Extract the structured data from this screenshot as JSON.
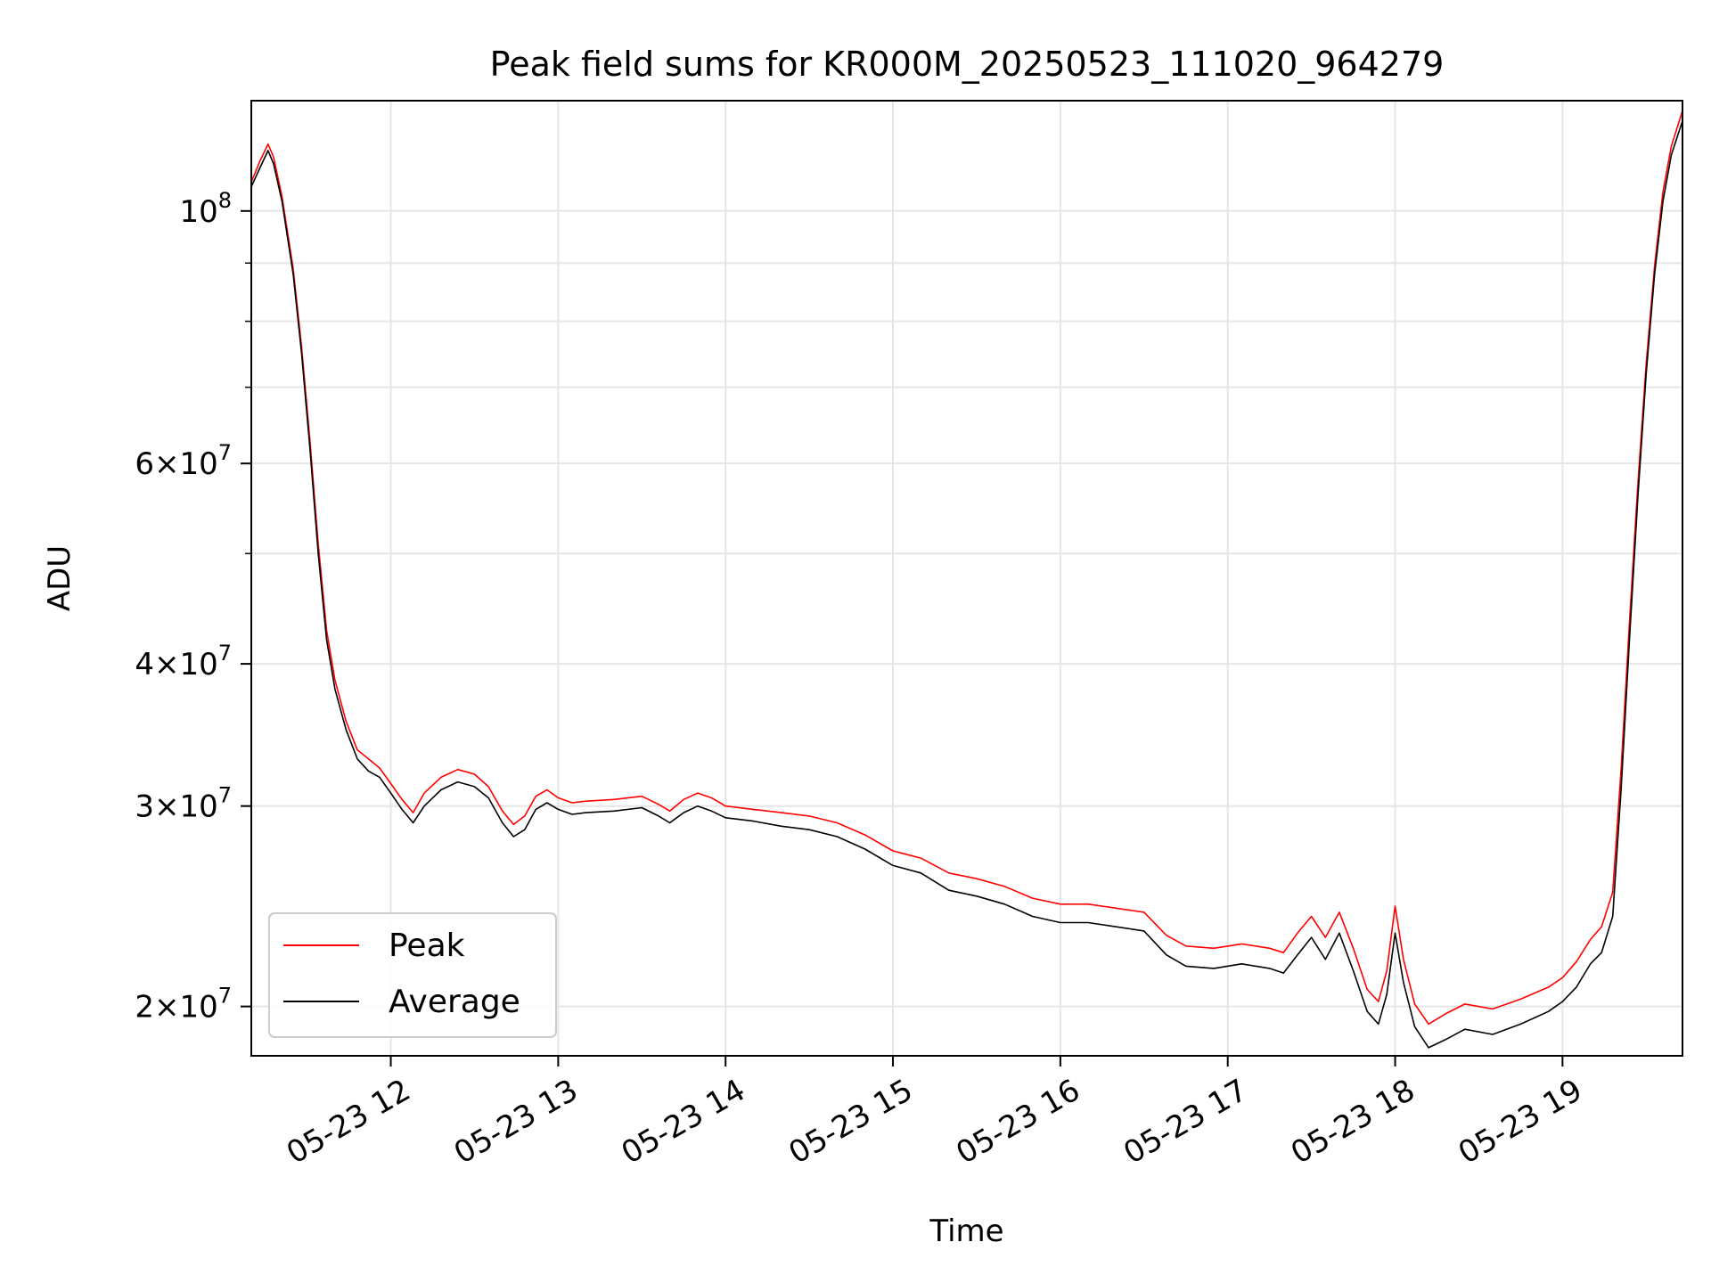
{
  "chart_data": {
    "type": "line",
    "title": "Peak field sums for KR000M_20250523_111020_964279",
    "xlabel": "Time",
    "ylabel": "ADU",
    "x_scale": "time",
    "y_scale": "log",
    "xlim": [
      "2025-05-23 11:10",
      "2025-05-23 19:43"
    ],
    "ylim": [
      18100000,
      125000000
    ],
    "x_ticks": [
      {
        "value": "2025-05-23 12:00",
        "label": "05-23 12"
      },
      {
        "value": "2025-05-23 13:00",
        "label": "05-23 13"
      },
      {
        "value": "2025-05-23 14:00",
        "label": "05-23 14"
      },
      {
        "value": "2025-05-23 15:00",
        "label": "05-23 15"
      },
      {
        "value": "2025-05-23 16:00",
        "label": "05-23 16"
      },
      {
        "value": "2025-05-23 17:00",
        "label": "05-23 17"
      },
      {
        "value": "2025-05-23 18:00",
        "label": "05-23 18"
      },
      {
        "value": "2025-05-23 19:00",
        "label": "05-23 19"
      }
    ],
    "y_ticks": [
      {
        "value": 100000000,
        "base": "10",
        "exp": "8",
        "mult": ""
      },
      {
        "value": 60000000,
        "base": "10",
        "exp": "7",
        "mult": "6"
      },
      {
        "value": 40000000,
        "base": "10",
        "exp": "7",
        "mult": "4"
      },
      {
        "value": 30000000,
        "base": "10",
        "exp": "7",
        "mult": "3"
      },
      {
        "value": 20000000,
        "base": "10",
        "exp": "7",
        "mult": "2"
      }
    ],
    "y_minor_ticks": [
      50000000,
      70000000,
      80000000,
      90000000
    ],
    "grid": true,
    "legend": {
      "placement": "lower-left",
      "entries": [
        "Peak",
        "Average"
      ]
    },
    "series": [
      {
        "name": "Average",
        "color": "#000000",
        "points": [
          [
            "2025-05-23 11:10",
            105000000
          ],
          [
            "2025-05-23 11:13",
            109000000
          ],
          [
            "2025-05-23 11:16",
            113000000
          ],
          [
            "2025-05-23 11:18",
            110000000
          ],
          [
            "2025-05-23 11:21",
            102000000
          ],
          [
            "2025-05-23 11:25",
            88000000
          ],
          [
            "2025-05-23 11:28",
            75000000
          ],
          [
            "2025-05-23 11:31",
            62000000
          ],
          [
            "2025-05-23 11:34",
            50000000
          ],
          [
            "2025-05-23 11:37",
            42000000
          ],
          [
            "2025-05-23 11:40",
            38000000
          ],
          [
            "2025-05-23 11:44",
            35000000
          ],
          [
            "2025-05-23 11:48",
            33000000
          ],
          [
            "2025-05-23 11:52",
            32200000
          ],
          [
            "2025-05-23 11:56",
            31800000
          ],
          [
            "2025-05-23 12:00",
            30800000
          ],
          [
            "2025-05-23 12:04",
            29800000
          ],
          [
            "2025-05-23 12:08",
            29000000
          ],
          [
            "2025-05-23 12:12",
            30000000
          ],
          [
            "2025-05-23 12:18",
            31000000
          ],
          [
            "2025-05-23 12:24",
            31500000
          ],
          [
            "2025-05-23 12:30",
            31200000
          ],
          [
            "2025-05-23 12:35",
            30500000
          ],
          [
            "2025-05-23 12:40",
            29000000
          ],
          [
            "2025-05-23 12:44",
            28200000
          ],
          [
            "2025-05-23 12:48",
            28600000
          ],
          [
            "2025-05-23 12:52",
            29800000
          ],
          [
            "2025-05-23 12:56",
            30200000
          ],
          [
            "2025-05-23 13:00",
            29800000
          ],
          [
            "2025-05-23 13:05",
            29500000
          ],
          [
            "2025-05-23 13:10",
            29600000
          ],
          [
            "2025-05-23 13:20",
            29700000
          ],
          [
            "2025-05-23 13:30",
            29900000
          ],
          [
            "2025-05-23 13:36",
            29400000
          ],
          [
            "2025-05-23 13:40",
            29000000
          ],
          [
            "2025-05-23 13:45",
            29600000
          ],
          [
            "2025-05-23 13:50",
            30000000
          ],
          [
            "2025-05-23 13:55",
            29700000
          ],
          [
            "2025-05-23 14:00",
            29300000
          ],
          [
            "2025-05-23 14:10",
            29100000
          ],
          [
            "2025-05-23 14:20",
            28800000
          ],
          [
            "2025-05-23 14:30",
            28600000
          ],
          [
            "2025-05-23 14:40",
            28200000
          ],
          [
            "2025-05-23 14:50",
            27500000
          ],
          [
            "2025-05-23 15:00",
            26600000
          ],
          [
            "2025-05-23 15:10",
            26200000
          ],
          [
            "2025-05-23 15:20",
            25300000
          ],
          [
            "2025-05-23 15:30",
            25000000
          ],
          [
            "2025-05-23 15:40",
            24600000
          ],
          [
            "2025-05-23 15:50",
            24000000
          ],
          [
            "2025-05-23 16:00",
            23700000
          ],
          [
            "2025-05-23 16:10",
            23700000
          ],
          [
            "2025-05-23 16:20",
            23500000
          ],
          [
            "2025-05-23 16:30",
            23300000
          ],
          [
            "2025-05-23 16:38",
            22200000
          ],
          [
            "2025-05-23 16:45",
            21700000
          ],
          [
            "2025-05-23 16:55",
            21600000
          ],
          [
            "2025-05-23 17:05",
            21800000
          ],
          [
            "2025-05-23 17:15",
            21600000
          ],
          [
            "2025-05-23 17:20",
            21400000
          ],
          [
            "2025-05-23 17:25",
            22200000
          ],
          [
            "2025-05-23 17:30",
            23000000
          ],
          [
            "2025-05-23 17:35",
            22000000
          ],
          [
            "2025-05-23 17:40",
            23200000
          ],
          [
            "2025-05-23 17:45",
            21500000
          ],
          [
            "2025-05-23 17:50",
            19800000
          ],
          [
            "2025-05-23 17:54",
            19300000
          ],
          [
            "2025-05-23 17:57",
            20500000
          ],
          [
            "2025-05-23 18:00",
            23200000
          ],
          [
            "2025-05-23 18:03",
            21000000
          ],
          [
            "2025-05-23 18:07",
            19200000
          ],
          [
            "2025-05-23 18:12",
            18400000
          ],
          [
            "2025-05-23 18:18",
            18700000
          ],
          [
            "2025-05-23 18:25",
            19100000
          ],
          [
            "2025-05-23 18:35",
            18900000
          ],
          [
            "2025-05-23 18:45",
            19300000
          ],
          [
            "2025-05-23 18:55",
            19800000
          ],
          [
            "2025-05-23 19:00",
            20200000
          ],
          [
            "2025-05-23 19:05",
            20800000
          ],
          [
            "2025-05-23 19:10",
            21800000
          ],
          [
            "2025-05-23 19:14",
            22300000
          ],
          [
            "2025-05-23 19:18",
            24000000
          ],
          [
            "2025-05-23 19:21",
            31000000
          ],
          [
            "2025-05-23 19:24",
            42000000
          ],
          [
            "2025-05-23 19:27",
            56000000
          ],
          [
            "2025-05-23 19:30",
            72000000
          ],
          [
            "2025-05-23 19:33",
            88000000
          ],
          [
            "2025-05-23 19:36",
            102000000
          ],
          [
            "2025-05-23 19:39",
            112000000
          ],
          [
            "2025-05-23 19:43",
            120000000
          ]
        ]
      },
      {
        "name": "Peak",
        "color": "#ff0000",
        "points": [
          [
            "2025-05-23 11:10",
            106000000
          ],
          [
            "2025-05-23 11:13",
            110500000
          ],
          [
            "2025-05-23 11:16",
            114500000
          ],
          [
            "2025-05-23 11:18",
            111500000
          ],
          [
            "2025-05-23 11:21",
            103000000
          ],
          [
            "2025-05-23 11:25",
            89000000
          ],
          [
            "2025-05-23 11:28",
            76000000
          ],
          [
            "2025-05-23 11:31",
            63000000
          ],
          [
            "2025-05-23 11:34",
            51000000
          ],
          [
            "2025-05-23 11:37",
            42800000
          ],
          [
            "2025-05-23 11:40",
            38700000
          ],
          [
            "2025-05-23 11:44",
            35600000
          ],
          [
            "2025-05-23 11:48",
            33600000
          ],
          [
            "2025-05-23 11:52",
            33000000
          ],
          [
            "2025-05-23 11:56",
            32400000
          ],
          [
            "2025-05-23 12:00",
            31400000
          ],
          [
            "2025-05-23 12:04",
            30400000
          ],
          [
            "2025-05-23 12:08",
            29600000
          ],
          [
            "2025-05-23 12:12",
            30800000
          ],
          [
            "2025-05-23 12:18",
            31800000
          ],
          [
            "2025-05-23 12:24",
            32300000
          ],
          [
            "2025-05-23 12:30",
            32000000
          ],
          [
            "2025-05-23 12:35",
            31200000
          ],
          [
            "2025-05-23 12:40",
            29700000
          ],
          [
            "2025-05-23 12:44",
            28900000
          ],
          [
            "2025-05-23 12:48",
            29400000
          ],
          [
            "2025-05-23 12:52",
            30600000
          ],
          [
            "2025-05-23 12:56",
            31000000
          ],
          [
            "2025-05-23 13:00",
            30500000
          ],
          [
            "2025-05-23 13:05",
            30200000
          ],
          [
            "2025-05-23 13:10",
            30300000
          ],
          [
            "2025-05-23 13:20",
            30400000
          ],
          [
            "2025-05-23 13:30",
            30600000
          ],
          [
            "2025-05-23 13:36",
            30100000
          ],
          [
            "2025-05-23 13:40",
            29700000
          ],
          [
            "2025-05-23 13:45",
            30400000
          ],
          [
            "2025-05-23 13:50",
            30800000
          ],
          [
            "2025-05-23 13:55",
            30500000
          ],
          [
            "2025-05-23 14:00",
            30000000
          ],
          [
            "2025-05-23 14:10",
            29800000
          ],
          [
            "2025-05-23 14:20",
            29600000
          ],
          [
            "2025-05-23 14:30",
            29400000
          ],
          [
            "2025-05-23 14:40",
            29000000
          ],
          [
            "2025-05-23 14:50",
            28300000
          ],
          [
            "2025-05-23 15:00",
            27400000
          ],
          [
            "2025-05-23 15:10",
            27000000
          ],
          [
            "2025-05-23 15:20",
            26200000
          ],
          [
            "2025-05-23 15:30",
            25900000
          ],
          [
            "2025-05-23 15:40",
            25500000
          ],
          [
            "2025-05-23 15:50",
            24900000
          ],
          [
            "2025-05-23 16:00",
            24600000
          ],
          [
            "2025-05-23 16:10",
            24600000
          ],
          [
            "2025-05-23 16:20",
            24400000
          ],
          [
            "2025-05-23 16:30",
            24200000
          ],
          [
            "2025-05-23 16:38",
            23100000
          ],
          [
            "2025-05-23 16:45",
            22600000
          ],
          [
            "2025-05-23 16:55",
            22500000
          ],
          [
            "2025-05-23 17:05",
            22700000
          ],
          [
            "2025-05-23 17:15",
            22500000
          ],
          [
            "2025-05-23 17:20",
            22300000
          ],
          [
            "2025-05-23 17:25",
            23200000
          ],
          [
            "2025-05-23 17:30",
            24000000
          ],
          [
            "2025-05-23 17:35",
            23000000
          ],
          [
            "2025-05-23 17:40",
            24200000
          ],
          [
            "2025-05-23 17:45",
            22500000
          ],
          [
            "2025-05-23 17:50",
            20700000
          ],
          [
            "2025-05-23 17:54",
            20200000
          ],
          [
            "2025-05-23 17:57",
            21500000
          ],
          [
            "2025-05-23 18:00",
            24500000
          ],
          [
            "2025-05-23 18:03",
            22000000
          ],
          [
            "2025-05-23 18:07",
            20100000
          ],
          [
            "2025-05-23 18:12",
            19300000
          ],
          [
            "2025-05-23 18:18",
            19700000
          ],
          [
            "2025-05-23 18:25",
            20100000
          ],
          [
            "2025-05-23 18:35",
            19900000
          ],
          [
            "2025-05-23 18:45",
            20300000
          ],
          [
            "2025-05-23 18:55",
            20800000
          ],
          [
            "2025-05-23 19:00",
            21200000
          ],
          [
            "2025-05-23 19:05",
            21900000
          ],
          [
            "2025-05-23 19:10",
            22900000
          ],
          [
            "2025-05-23 19:14",
            23500000
          ],
          [
            "2025-05-23 19:18",
            25200000
          ],
          [
            "2025-05-23 19:21",
            32300000
          ],
          [
            "2025-05-23 19:24",
            43500000
          ],
          [
            "2025-05-23 19:27",
            57500000
          ],
          [
            "2025-05-23 19:30",
            73500000
          ],
          [
            "2025-05-23 19:33",
            89500000
          ],
          [
            "2025-05-23 19:36",
            104000000
          ],
          [
            "2025-05-23 19:39",
            114000000
          ],
          [
            "2025-05-23 19:43",
            122500000
          ]
        ]
      }
    ]
  }
}
